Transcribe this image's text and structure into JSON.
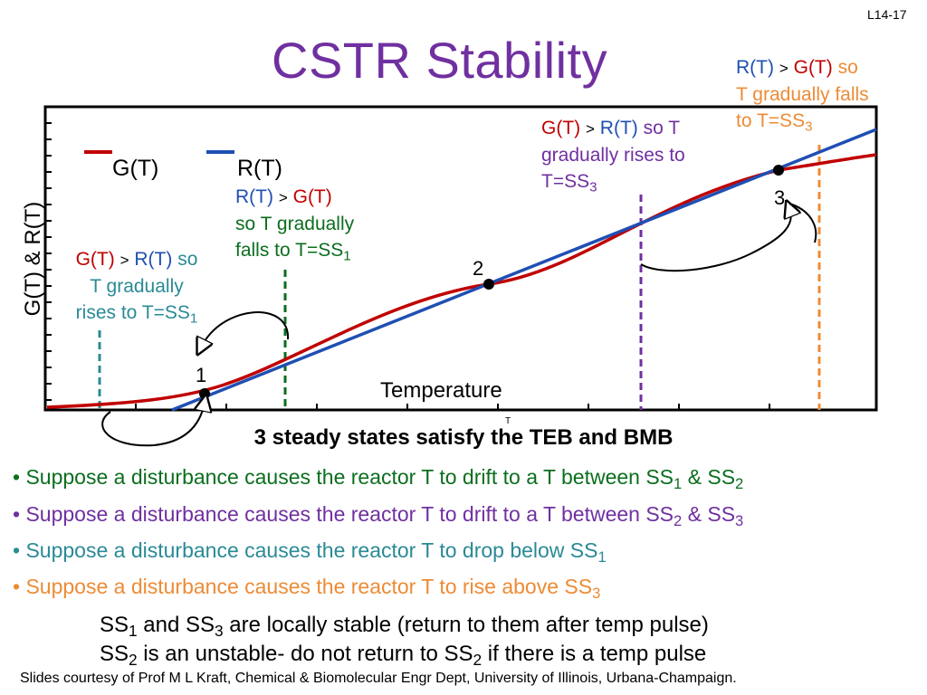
{
  "slide_number": "L14-17",
  "title": "CSTR Stability",
  "y_axis_label": "G(T) & R(T)",
  "x_axis_label": "Temperature",
  "x_axis_small_label": "T",
  "legend": {
    "g_label": "G(T)",
    "r_label": "R(T)"
  },
  "colors": {
    "g_curve": "#c00000",
    "r_curve": "#1f4fb4",
    "title": "#7030a0",
    "green": "#0b6e1e",
    "purple": "#7030a0",
    "teal": "#2a8a96",
    "orange": "#ed8b35"
  },
  "steady_states": {
    "ss1": "1",
    "ss2": "2",
    "ss3": "3"
  },
  "annotations": {
    "green": {
      "a": "R(T)",
      "gt": ">",
      "b": "G(T)",
      "line2": "so T gradually",
      "line3": "falls to T=SS",
      "sub": "1"
    },
    "teal": {
      "a": "G(T)",
      "gt": ">",
      "b": "R(T)",
      "so": "so",
      "line2": "T gradually",
      "line3": "rises to T=SS",
      "sub": "1"
    },
    "purple": {
      "a": "G(T)",
      "gt": ">",
      "b": "R(T)",
      "so": "so T",
      "line2": "gradually rises to",
      "line3": "T=SS",
      "sub": "3"
    },
    "orange": {
      "a": "R(T)",
      "gt": ">",
      "b": "G(T)",
      "so": "so",
      "line2": "T gradually falls",
      "line3": "to T=SS",
      "sub": "3"
    }
  },
  "subtitle": "3 steady states satisfy the TEB and BMB",
  "bullets": [
    {
      "text": "Suppose a disturbance causes the reactor T to drift to a T between SS",
      "s1": "1",
      "mid": " & SS",
      "s2": "2"
    },
    {
      "text": "Suppose a disturbance causes the reactor T to drift to a T between SS",
      "s1": "2",
      "mid": " & SS",
      "s2": "3"
    },
    {
      "text": "Suppose a disturbance causes the reactor T to drop below SS",
      "s1": "1"
    },
    {
      "text": "Suppose a disturbance causes the reactor T to rise above SS",
      "s1": "3"
    }
  ],
  "conclusion": {
    "line1": {
      "a": "SS",
      "s1": "1",
      "b": " and SS",
      "s2": "3",
      "c": " are locally stable (return to them after temp pulse)"
    },
    "line2": {
      "a": "SS",
      "s1": "2",
      "b": " is an unstable- do not return to SS",
      "s2": "2",
      "c": " if there is a temp pulse"
    }
  },
  "footer": "Slides courtesy of Prof M L Kraft, Chemical & Biomolecular Engr Dept, University of Illinois, Urbana-Champaign."
}
